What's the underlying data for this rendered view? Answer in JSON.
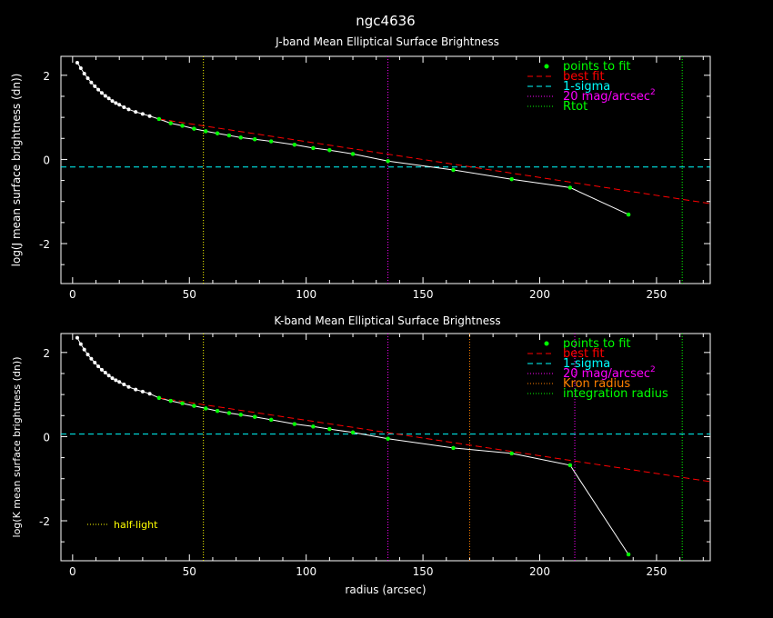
{
  "title": "ngc4636",
  "xlabel": "radius (arcsec)",
  "colors": {
    "background": "#000000",
    "axes": "#ffffff",
    "data": "#ffffff",
    "fit_points": "#00ff00",
    "best_fit": "#ff0000",
    "sigma": "#00ffff",
    "mag20": "#ff00ff",
    "rtot": "#00ff00",
    "kron": "#ff8000",
    "half_light": "#ffff00",
    "integration": "#00ff00"
  },
  "chart_data": [
    {
      "type": "scatter",
      "title": "J-band Mean Elliptical Surface Brightness",
      "xlabel": "",
      "ylabel": "log(J mean surface brightness (dn))",
      "xlim": [
        -5,
        273
      ],
      "ylim": [
        -2.95,
        2.45
      ],
      "xticks": [
        0,
        50,
        100,
        150,
        200,
        250
      ],
      "yticks": [
        -2,
        0,
        2
      ],
      "legend_position": "top-right",
      "legend": [
        {
          "label": "points to fit",
          "style": "dot",
          "color": "#00ff00"
        },
        {
          "label": "best fit",
          "style": "dashed",
          "color": "#ff0000"
        },
        {
          "label": "1-sigma",
          "style": "dashed",
          "color": "#00ffff"
        },
        {
          "label": "20 mag/arcsec",
          "sup": "2",
          "style": "dotted",
          "color": "#ff00ff"
        },
        {
          "label": "Rtot",
          "style": "dotted",
          "color": "#00ff00"
        }
      ],
      "profile": {
        "x": [
          2,
          3.5,
          5,
          6.5,
          8,
          9.5,
          11,
          12.5,
          14,
          15.5,
          17,
          18.5,
          20,
          22,
          24,
          27,
          30,
          33,
          37,
          42,
          47,
          52,
          57,
          62,
          67,
          72,
          78,
          85,
          95,
          103,
          110,
          120,
          135,
          163,
          188,
          213,
          238
        ],
        "y": [
          2.3,
          2.17,
          2.04,
          1.93,
          1.83,
          1.74,
          1.66,
          1.58,
          1.51,
          1.45,
          1.39,
          1.34,
          1.3,
          1.24,
          1.19,
          1.13,
          1.08,
          1.03,
          0.96,
          0.86,
          0.8,
          0.73,
          0.67,
          0.62,
          0.57,
          0.52,
          0.48,
          0.43,
          0.35,
          0.27,
          0.22,
          0.13,
          -0.04,
          -0.25,
          -0.47,
          -0.67,
          -1.31
        ]
      },
      "fit_points": {
        "x": [
          37,
          42,
          47,
          52,
          57,
          62,
          67,
          72,
          78,
          85,
          95,
          103,
          110,
          120,
          135,
          163,
          188,
          213,
          238
        ],
        "y": [
          0.96,
          0.86,
          0.8,
          0.73,
          0.67,
          0.62,
          0.57,
          0.52,
          0.48,
          0.43,
          0.35,
          0.27,
          0.22,
          0.13,
          -0.04,
          -0.25,
          -0.47,
          -0.67,
          -1.31
        ]
      },
      "best_fit": {
        "x": [
          37,
          273
        ],
        "y": [
          0.96,
          -1.05
        ]
      },
      "sigma_level": -0.18,
      "vlines": [
        {
          "x": 56,
          "color": "#ffff00"
        },
        {
          "x": 135,
          "color": "#ff00ff"
        },
        {
          "x": 261,
          "color": "#00ff00"
        }
      ]
    },
    {
      "type": "scatter",
      "title": "K-band Mean Elliptical Surface Brightness",
      "xlabel": "radius (arcsec)",
      "ylabel": "log(K mean surface brightness (dn))",
      "xlim": [
        -5,
        273
      ],
      "ylim": [
        -2.95,
        2.45
      ],
      "xticks": [
        0,
        50,
        100,
        150,
        200,
        250
      ],
      "yticks": [
        -2,
        0,
        2
      ],
      "legend_position": "top-right",
      "legend": [
        {
          "label": "points to fit",
          "style": "dot",
          "color": "#00ff00"
        },
        {
          "label": "best fit",
          "style": "dashed",
          "color": "#ff0000"
        },
        {
          "label": "1-sigma",
          "style": "dashed",
          "color": "#00ffff"
        },
        {
          "label": "20 mag/arcsec",
          "sup": "2",
          "style": "dotted",
          "color": "#ff00ff"
        },
        {
          "label": "Kron radius",
          "style": "dotted",
          "color": "#ff8000"
        },
        {
          "label": "integration radius",
          "style": "dotted",
          "color": "#00ff00"
        }
      ],
      "annotation": {
        "label": "half-light",
        "color": "#ffff00"
      },
      "profile": {
        "x": [
          2,
          3.5,
          5,
          6.5,
          8,
          9.5,
          11,
          12.5,
          14,
          15.5,
          17,
          18.5,
          20,
          22,
          24,
          27,
          30,
          33,
          37,
          42,
          47,
          52,
          57,
          62,
          67,
          72,
          78,
          85,
          95,
          103,
          110,
          120,
          135,
          163,
          188,
          213,
          238
        ],
        "y": [
          2.35,
          2.2,
          2.07,
          1.95,
          1.85,
          1.76,
          1.67,
          1.59,
          1.52,
          1.45,
          1.39,
          1.34,
          1.3,
          1.24,
          1.18,
          1.12,
          1.07,
          1.02,
          0.92,
          0.85,
          0.79,
          0.73,
          0.67,
          0.61,
          0.56,
          0.52,
          0.47,
          0.4,
          0.3,
          0.24,
          0.18,
          0.1,
          -0.05,
          -0.27,
          -0.4,
          -0.68,
          -2.8
        ]
      },
      "fit_points": {
        "x": [
          37,
          42,
          47,
          52,
          57,
          62,
          67,
          72,
          78,
          85,
          95,
          103,
          110,
          120,
          135,
          163,
          188,
          213,
          238
        ],
        "y": [
          0.92,
          0.85,
          0.79,
          0.73,
          0.67,
          0.61,
          0.56,
          0.52,
          0.47,
          0.4,
          0.3,
          0.24,
          0.18,
          0.1,
          -0.05,
          -0.27,
          -0.4,
          -0.68,
          -2.8
        ]
      },
      "best_fit": {
        "x": [
          37,
          273
        ],
        "y": [
          0.92,
          -1.07
        ]
      },
      "sigma_level": 0.06,
      "vlines": [
        {
          "x": 56,
          "color": "#ffff00"
        },
        {
          "x": 135,
          "color": "#ff00ff"
        },
        {
          "x": 170,
          "color": "#ff8000"
        },
        {
          "x": 215,
          "color": "#ff00ff"
        },
        {
          "x": 261,
          "color": "#00ff00"
        }
      ]
    }
  ]
}
